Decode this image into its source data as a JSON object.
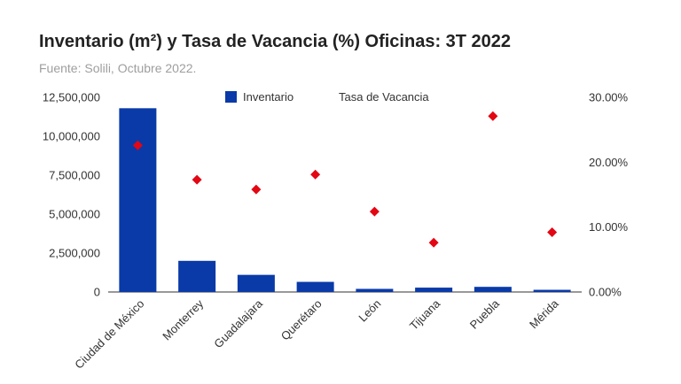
{
  "chart_data": {
    "type": "bar",
    "title": "Inventario (m²) y Tasa de Vacancia (%) Oficinas: 3T 2022",
    "subtitle": "Fuente: Solili,  Octubre 2022.",
    "categories": [
      "Ciudad de México",
      "Monterrey",
      "Guadalajara",
      "Querétaro",
      "León",
      "Tijuana",
      "Puebla",
      "Mérida"
    ],
    "series": [
      {
        "name": "Inventario",
        "kind": "bar",
        "axis": "left",
        "color": "#0a3aa8",
        "values": [
          11800000,
          2000000,
          1100000,
          650000,
          200000,
          280000,
          330000,
          140000
        ]
      },
      {
        "name": "Tasa de Vacancia",
        "kind": "point",
        "axis": "right",
        "color": "#e30613",
        "values": [
          22.6,
          17.3,
          15.8,
          18.1,
          12.4,
          7.6,
          27.1,
          9.2
        ]
      }
    ],
    "y_left": {
      "min": 0,
      "max": 12500000,
      "ticks": [
        0,
        2500000,
        5000000,
        7500000,
        10000000,
        12500000
      ],
      "tick_labels": [
        "0",
        "2,500,000",
        "5,000,000",
        "7,500,000",
        "10,000,000",
        "12,500,000"
      ]
    },
    "y_right": {
      "min": 0,
      "max": 30,
      "ticks": [
        0,
        10,
        20,
        30
      ],
      "tick_labels": [
        "0.00%",
        "10.00%",
        "20.00%",
        "30.00%"
      ]
    },
    "legend": {
      "placement": "top-center"
    },
    "grid": false
  }
}
